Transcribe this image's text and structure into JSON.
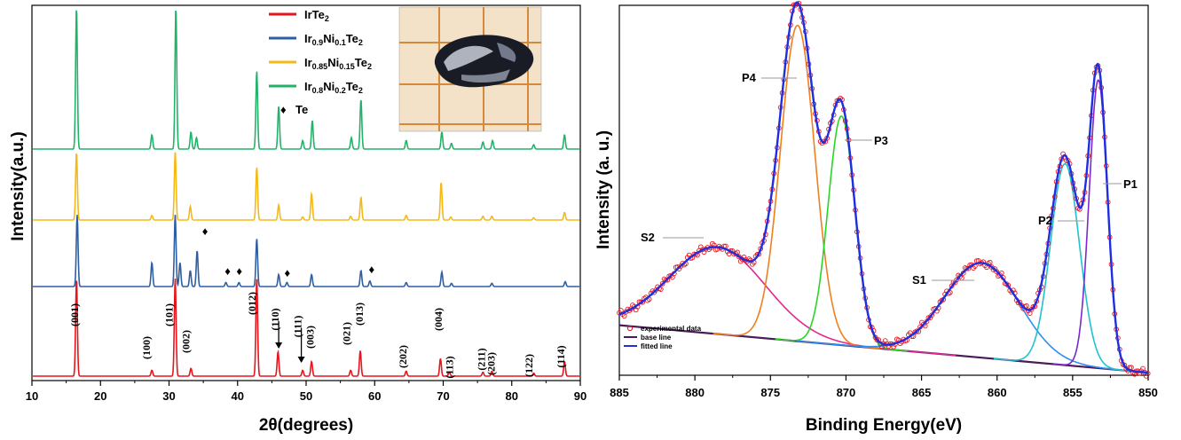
{
  "chart_data": [
    {
      "type": "line",
      "xlabel": "2θ(degrees)",
      "ylabel": "Intensity(a.u.)",
      "xlim": [
        10,
        90
      ],
      "xticks": [
        "10",
        "20",
        "30",
        "40",
        "50",
        "60",
        "70",
        "80",
        "90"
      ],
      "grid": false,
      "legend_placement": "top-center",
      "inset": "photo of crystal on grid paper",
      "series": [
        {
          "name": "IrTe2",
          "legend_main": "IrTe",
          "legend_sub": "2",
          "color": "#e8141b",
          "offset": 0,
          "peaks": [
            [
              16.5,
              1.0
            ],
            [
              27.5,
              0.06
            ],
            [
              30.9,
              1.0
            ],
            [
              33.2,
              0.08
            ],
            [
              42.8,
              1.0
            ],
            [
              45.9,
              0.25
            ],
            [
              49.5,
              0.06
            ],
            [
              50.8,
              0.15
            ],
            [
              56.5,
              0.06
            ],
            [
              57.9,
              0.26
            ],
            [
              64.6,
              0.05
            ],
            [
              69.6,
              0.18
            ],
            [
              70.9,
              0.04
            ],
            [
              75.8,
              0.04
            ],
            [
              77.1,
              0.05
            ],
            [
              83.2,
              0.03
            ],
            [
              87.7,
              0.15
            ]
          ]
        },
        {
          "name": "Ir0.9Ni0.1Te2",
          "legend_main": "Ir0.9Ni0.1Te",
          "legend_sub": "2",
          "color": "#2e5ea3",
          "offset": 1,
          "peaks": [
            [
              16.6,
              0.9
            ],
            [
              27.5,
              0.3
            ],
            [
              30.9,
              0.9
            ],
            [
              31.6,
              0.3
            ],
            [
              33.1,
              0.2
            ],
            [
              34.1,
              0.45
            ],
            [
              38.3,
              0.05
            ],
            [
              40.2,
              0.05
            ],
            [
              42.8,
              0.6
            ],
            [
              46.0,
              0.15
            ],
            [
              47.2,
              0.05
            ],
            [
              50.8,
              0.15
            ],
            [
              58.0,
              0.2
            ],
            [
              59.3,
              0.07
            ],
            [
              64.6,
              0.05
            ],
            [
              69.8,
              0.18
            ],
            [
              71.2,
              0.04
            ],
            [
              77.1,
              0.04
            ],
            [
              87.8,
              0.06
            ]
          ]
        },
        {
          "name": "Ir0.85Ni0.15Te2",
          "legend_main": "Ir0.85Ni0.15Te",
          "legend_sub": "2",
          "color": "#f5b915",
          "offset": 2,
          "peaks": [
            [
              16.5,
              0.9
            ],
            [
              27.5,
              0.06
            ],
            [
              30.9,
              0.9
            ],
            [
              33.1,
              0.18
            ],
            [
              42.8,
              0.7
            ],
            [
              46.0,
              0.2
            ],
            [
              49.5,
              0.04
            ],
            [
              50.8,
              0.35
            ],
            [
              56.5,
              0.05
            ],
            [
              58.0,
              0.3
            ],
            [
              64.6,
              0.06
            ],
            [
              69.7,
              0.5
            ],
            [
              71.1,
              0.04
            ],
            [
              75.8,
              0.05
            ],
            [
              77.1,
              0.05
            ],
            [
              83.2,
              0.03
            ],
            [
              87.7,
              0.1
            ]
          ]
        },
        {
          "name": "Ir0.8Ni0.2Te2",
          "legend_main": "Ir0.8Ni0.2Te",
          "legend_sub": "2",
          "color": "#23b26a",
          "offset": 3,
          "peaks": [
            [
              16.5,
              1.0
            ],
            [
              27.5,
              0.1
            ],
            [
              31.0,
              1.0
            ],
            [
              33.2,
              0.12
            ],
            [
              34.0,
              0.08
            ],
            [
              42.8,
              0.55
            ],
            [
              46.0,
              0.3
            ],
            [
              49.5,
              0.06
            ],
            [
              50.9,
              0.2
            ],
            [
              56.6,
              0.08
            ],
            [
              58.0,
              0.35
            ],
            [
              64.6,
              0.06
            ],
            [
              69.8,
              0.12
            ],
            [
              71.2,
              0.04
            ],
            [
              75.8,
              0.05
            ],
            [
              77.2,
              0.06
            ],
            [
              83.2,
              0.03
            ],
            [
              87.7,
              0.1
            ]
          ]
        }
      ],
      "impurity_marker": {
        "symbol": "♦",
        "label": "Te",
        "positions": [
          35.0,
          38.3,
          40.0,
          47.0,
          59.3
        ]
      },
      "miller_indices": [
        {
          "label": "(001)",
          "x": 16.7
        },
        {
          "label": "(100)",
          "x": 27.2
        },
        {
          "label": "(101)",
          "x": 30.5
        },
        {
          "label": "(002)",
          "x": 33.0
        },
        {
          "label": "(012)",
          "x": 42.6
        },
        {
          "label": "(110)",
          "x": 46.0
        },
        {
          "label": "(111)",
          "x": 49.3
        },
        {
          "label": "(003)",
          "x": 51.1
        },
        {
          "label": "(021)",
          "x": 56.4
        },
        {
          "label": "(013)",
          "x": 58.3
        },
        {
          "label": "(202)",
          "x": 64.6
        },
        {
          "label": "(004)",
          "x": 69.8
        },
        {
          "label": "(113)",
          "x": 71.4
        },
        {
          "label": "(211)",
          "x": 76.1
        },
        {
          "label": "(203)",
          "x": 77.5
        },
        {
          "label": "(122)",
          "x": 83.0
        },
        {
          "label": "(114)",
          "x": 87.7
        }
      ]
    },
    {
      "type": "line",
      "xlabel": "Binding Energy(eV)",
      "ylabel": "Intensity (a. u.)",
      "xlim": [
        885,
        850
      ],
      "xticks": [
        "885",
        "880",
        "875",
        "870",
        "865",
        "860",
        "855",
        "850"
      ],
      "x_reversed": true,
      "grid": false,
      "legend_placement": "bottom-left",
      "legend": [
        {
          "label": "experimental data",
          "style": "circle",
          "color": "#e8141b"
        },
        {
          "label": "base line",
          "style": "line",
          "color": "#4a1a5a"
        },
        {
          "label": "fitted line",
          "style": "line",
          "color": "#1f2ee0"
        }
      ],
      "baseline": {
        "from": [
          885,
          0.12
        ],
        "to": [
          850,
          0.0
        ]
      },
      "components": [
        {
          "name": "S2",
          "center": 878.5,
          "height": 0.22,
          "width": 4.5,
          "color": "#e0288f"
        },
        {
          "name": "P4",
          "center": 873.2,
          "height": 0.8,
          "width": 1.6,
          "color": "#f07f1f"
        },
        {
          "name": "P3",
          "center": 870.3,
          "height": 0.58,
          "width": 1.25,
          "color": "#27d627"
        },
        {
          "name": "S1",
          "center": 861.0,
          "height": 0.24,
          "width": 3.5,
          "color": "#2b8ff0"
        },
        {
          "name": "P2",
          "center": 855.5,
          "height": 0.51,
          "width": 1.35,
          "color": "#20c2cf"
        },
        {
          "name": "P1",
          "center": 853.3,
          "height": 0.73,
          "width": 0.85,
          "color": "#7a28cf"
        }
      ],
      "annotations": [
        {
          "label": "P4",
          "x": 873.3
        },
        {
          "label": "P3",
          "x": 870.0
        },
        {
          "label": "S2",
          "x": 878.5
        },
        {
          "label": "S1",
          "x": 861.0
        },
        {
          "label": "P2",
          "x": 855.5
        },
        {
          "label": "P1",
          "x": 853.3
        }
      ]
    }
  ]
}
